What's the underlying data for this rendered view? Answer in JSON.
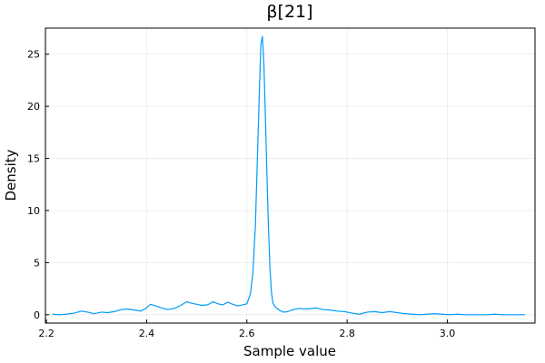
{
  "chart_data": {
    "type": "line",
    "title": "β[21]",
    "xlabel": "Sample value",
    "ylabel": "Density",
    "xlim": [
      2.198,
      3.175
    ],
    "ylim": [
      -0.8,
      27.5
    ],
    "x_ticks": [
      2.2,
      2.4,
      2.6,
      2.8,
      3.0
    ],
    "x_tick_labels": [
      "2.2",
      "2.4",
      "2.6",
      "2.8",
      "3.0"
    ],
    "y_ticks": [
      0,
      5,
      10,
      15,
      20,
      25
    ],
    "y_tick_labels": [
      "0",
      "5",
      "10",
      "15",
      "20",
      "25"
    ],
    "grid": true,
    "legend": "none",
    "series": [
      {
        "color": "#009af9",
        "x": [
          2.212,
          2.225,
          2.24,
          2.255,
          2.27,
          2.282,
          2.295,
          2.31,
          2.322,
          2.335,
          2.35,
          2.362,
          2.375,
          2.388,
          2.398,
          2.408,
          2.418,
          2.43,
          2.442,
          2.455,
          2.468,
          2.48,
          2.49,
          2.5,
          2.51,
          2.522,
          2.532,
          2.542,
          2.552,
          2.562,
          2.572,
          2.582,
          2.592,
          2.6,
          2.607,
          2.612,
          2.617,
          2.621,
          2.625,
          2.628,
          2.631,
          2.634,
          2.637,
          2.64,
          2.643,
          2.646,
          2.649,
          2.652,
          2.656,
          2.66,
          2.666,
          2.673,
          2.682,
          2.692,
          2.705,
          2.72,
          2.738,
          2.752,
          2.765,
          2.78,
          2.795,
          2.81,
          2.825,
          2.84,
          2.855,
          2.87,
          2.885,
          2.9,
          2.915,
          2.93,
          2.945,
          2.96,
          2.975,
          2.99,
          3.005,
          3.02,
          3.035,
          3.05,
          3.065,
          3.08,
          3.095,
          3.11,
          3.125,
          3.14,
          3.155
        ],
        "y": [
          0.05,
          0.0,
          0.05,
          0.15,
          0.35,
          0.25,
          0.1,
          0.25,
          0.2,
          0.3,
          0.5,
          0.55,
          0.45,
          0.35,
          0.6,
          1.0,
          0.85,
          0.65,
          0.5,
          0.6,
          0.9,
          1.25,
          1.1,
          1.0,
          0.9,
          0.95,
          1.25,
          1.05,
          0.95,
          1.2,
          1.0,
          0.85,
          0.95,
          1.05,
          2.0,
          4.0,
          8.5,
          15.0,
          21.5,
          26.0,
          26.7,
          24.0,
          19.0,
          13.5,
          8.5,
          4.5,
          2.2,
          1.1,
          0.8,
          0.6,
          0.4,
          0.25,
          0.3,
          0.5,
          0.6,
          0.55,
          0.65,
          0.5,
          0.45,
          0.35,
          0.3,
          0.15,
          0.05,
          0.25,
          0.3,
          0.2,
          0.3,
          0.2,
          0.1,
          0.05,
          0.0,
          0.05,
          0.1,
          0.05,
          0.0,
          0.05,
          0.0,
          0.0,
          0.0,
          0.0,
          0.05,
          0.0,
          0.0,
          0.0,
          0.0
        ]
      }
    ]
  }
}
